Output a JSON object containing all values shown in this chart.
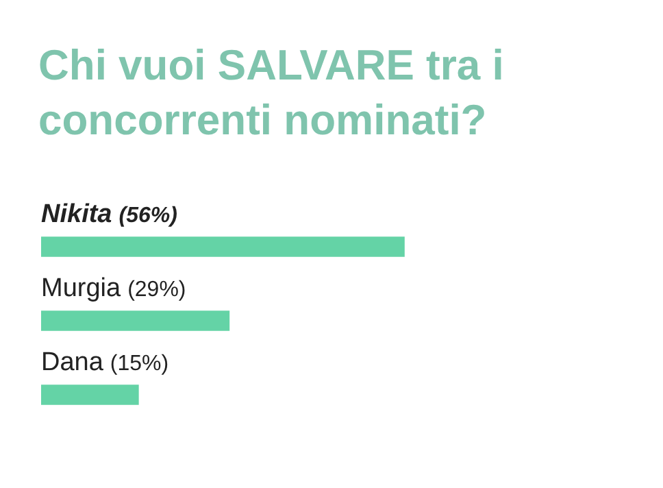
{
  "chart_data": {
    "type": "bar",
    "orientation": "horizontal",
    "title": "Chi vuoi SALVARE tra i concorrenti nominati?",
    "categories": [
      "Nikita",
      "Murgia",
      "Dana"
    ],
    "values": [
      56,
      29,
      15
    ],
    "value_labels": [
      "(56%)",
      "(29%)",
      "(15%)"
    ],
    "color": "#64d3a6",
    "tick_labels": false,
    "legend": false
  }
}
